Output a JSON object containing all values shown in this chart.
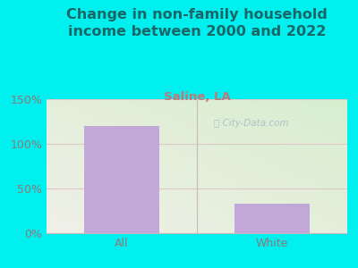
{
  "title": "Change in non-family household\nincome between 2000 and 2022",
  "subtitle": "Saline, LA",
  "categories": [
    "All",
    "White"
  ],
  "values": [
    120,
    33
  ],
  "bar_color": "#c2a8d8",
  "ylim": [
    0,
    150
  ],
  "yticks": [
    0,
    50,
    100,
    150
  ],
  "ytick_labels": [
    "0%",
    "50%",
    "100%",
    "150%"
  ],
  "title_fontsize": 11.5,
  "subtitle_fontsize": 9.5,
  "tick_fontsize": 9,
  "title_color": "#1a6666",
  "subtitle_color": "#c07878",
  "tick_color": "#907878",
  "bg_outer": "#00efef",
  "watermark": "City-Data.com",
  "watermark_color": "#a8b8c8",
  "grid_color": "#e0c8c8",
  "bottom_line_color": "#c8b8b8"
}
